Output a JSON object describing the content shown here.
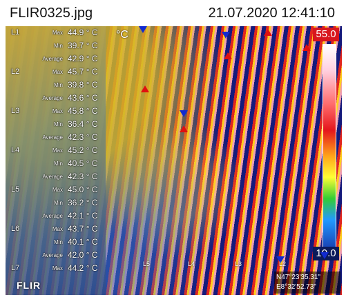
{
  "header": {
    "filename": "FLIR0325.jpg",
    "timestamp": "21.07.2020 12:41:10"
  },
  "thermal": {
    "unit": "°C",
    "scale_max": "55.0",
    "scale_min": "10.0",
    "gps_lat": "N47°23'35.31\"",
    "gps_lon": "E8°32'52.73\"",
    "brand": "FLIR",
    "line_labels": [
      "L5",
      "L4",
      "L3",
      "L2"
    ],
    "stats": [
      {
        "u": "L1",
        "label": "Max",
        "value": "44.9 ° C"
      },
      {
        "u": "",
        "label": "Min",
        "value": "39.7 ° C"
      },
      {
        "u": "",
        "label": "Average",
        "value": "42.9 ° C"
      },
      {
        "u": "L2",
        "label": "Max",
        "value": "45.7 ° C"
      },
      {
        "u": "",
        "label": "Min",
        "value": "39.8 ° C"
      },
      {
        "u": "",
        "label": "Average",
        "value": "43.6 ° C"
      },
      {
        "u": "L3",
        "label": "Max",
        "value": "45.8 ° C"
      },
      {
        "u": "",
        "label": "Min",
        "value": "36.4 ° C"
      },
      {
        "u": "",
        "label": "Average",
        "value": "42.3 ° C"
      },
      {
        "u": "L4",
        "label": "Max",
        "value": "45.2 ° C"
      },
      {
        "u": "",
        "label": "Min",
        "value": "40.5 ° C"
      },
      {
        "u": "",
        "label": "Average",
        "value": "42.3 ° C"
      },
      {
        "u": "L5",
        "label": "Max",
        "value": "45.0 ° C"
      },
      {
        "u": "",
        "label": "Min",
        "value": "36.2 ° C"
      },
      {
        "u": "",
        "label": "Average",
        "value": "42.1 ° C"
      },
      {
        "u": "L6",
        "label": "Max",
        "value": "43.7 ° C"
      },
      {
        "u": "",
        "label": "Min",
        "value": "40.1 ° C"
      },
      {
        "u": "",
        "label": "Average",
        "value": "42.0 ° C"
      },
      {
        "u": "L7",
        "label": "Max",
        "value": "44.2 ° C"
      }
    ],
    "colors": {
      "hot_marker": "#e01010",
      "cold_marker": "#112ad0",
      "scale_max_bg": "#d8161e",
      "scale_min_bg": "#0b1a5a"
    }
  }
}
